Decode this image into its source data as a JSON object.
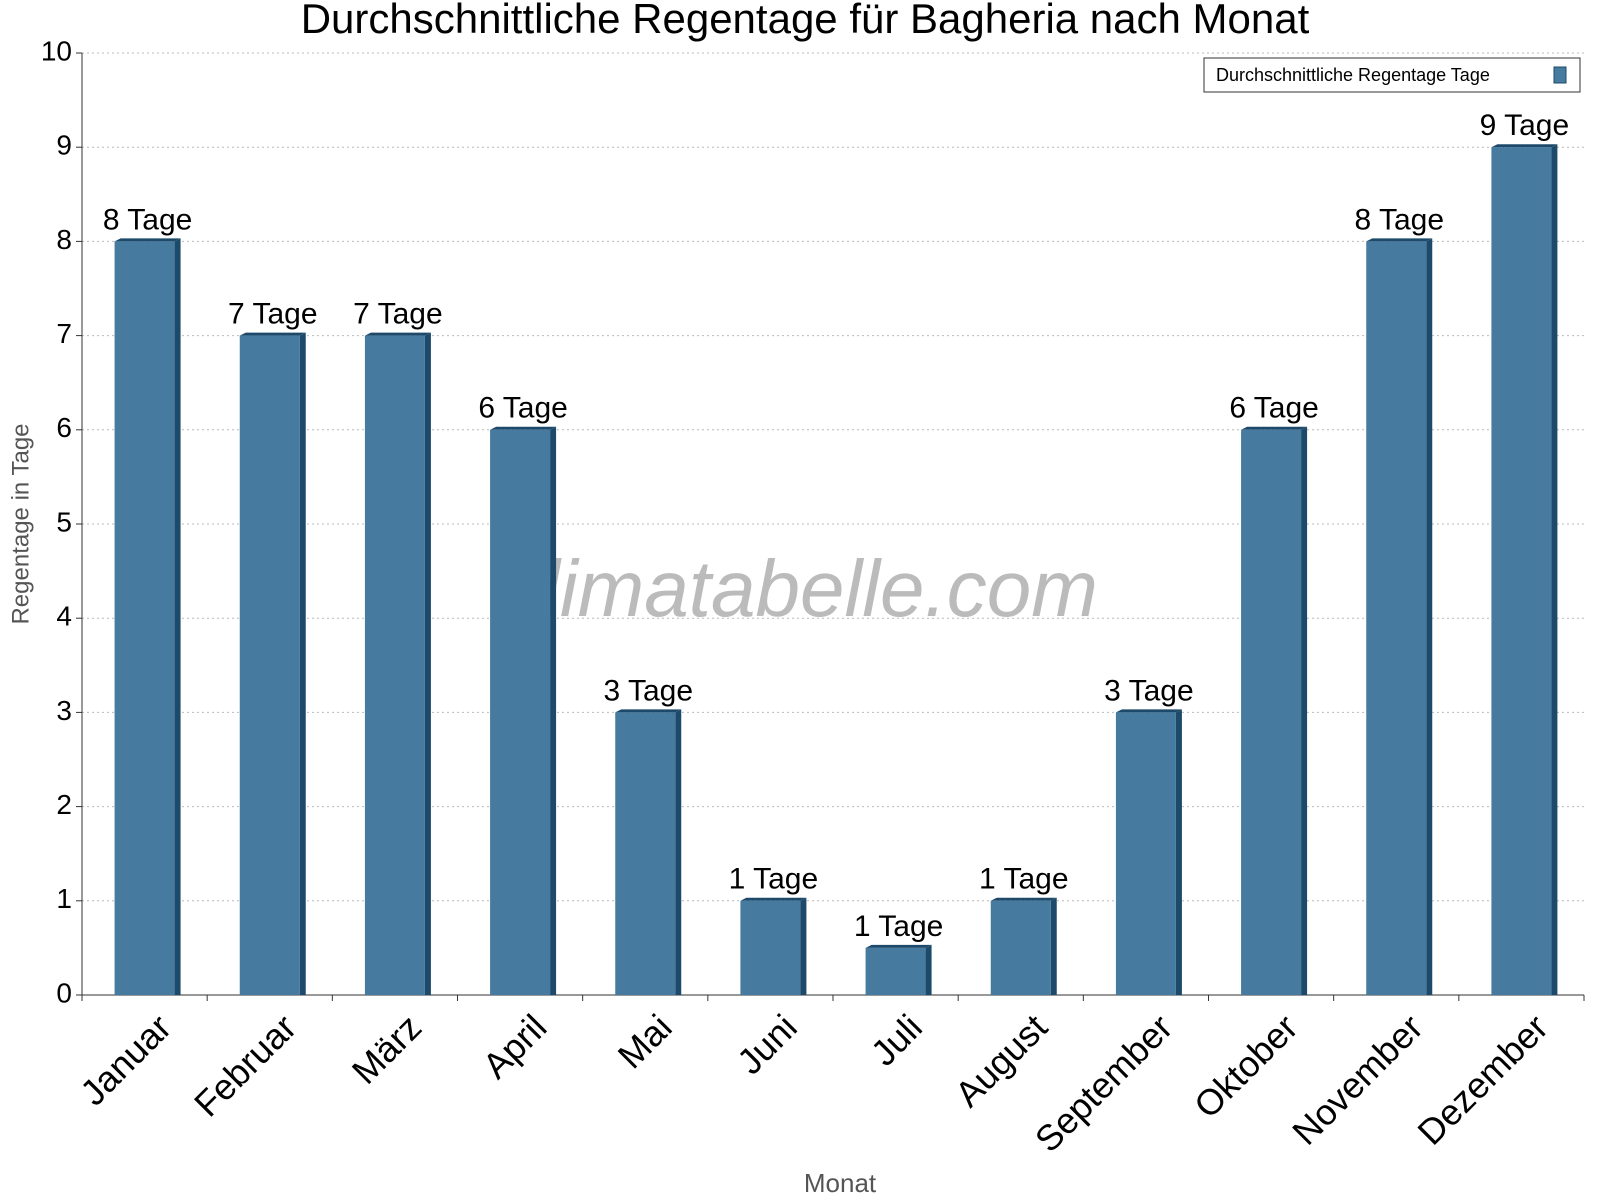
{
  "chart_data": {
    "type": "bar",
    "title": "Durchschnittliche Regentage für Bagheria nach Monat",
    "x_label": "Monat",
    "y_label": "Regentage in Tage",
    "watermark": "klimatabelle.com",
    "categories": [
      "Januar",
      "Februar",
      "März",
      "April",
      "Mai",
      "Juni",
      "Juli",
      "August",
      "September",
      "Oktober",
      "November",
      "Dezember"
    ],
    "series": [
      {
        "name": "Durchschnittliche Regentage Tage",
        "color": "#467a9e",
        "values": [
          8,
          7,
          7,
          6,
          3,
          1,
          0.5,
          1,
          3,
          6,
          8,
          9
        ],
        "value_labels": [
          "8 Tage",
          "7 Tage",
          "7 Tage",
          "6 Tage",
          "3 Tage",
          "1 Tage",
          "1 Tage",
          "1 Tage",
          "3 Tage",
          "6 Tage",
          "8 Tage",
          "9 Tage"
        ]
      }
    ],
    "ylim": [
      0,
      10
    ],
    "yticks": [
      0,
      1,
      2,
      3,
      4,
      5,
      6,
      7,
      8,
      9,
      10
    ],
    "grid": true,
    "legend": "upper right"
  }
}
